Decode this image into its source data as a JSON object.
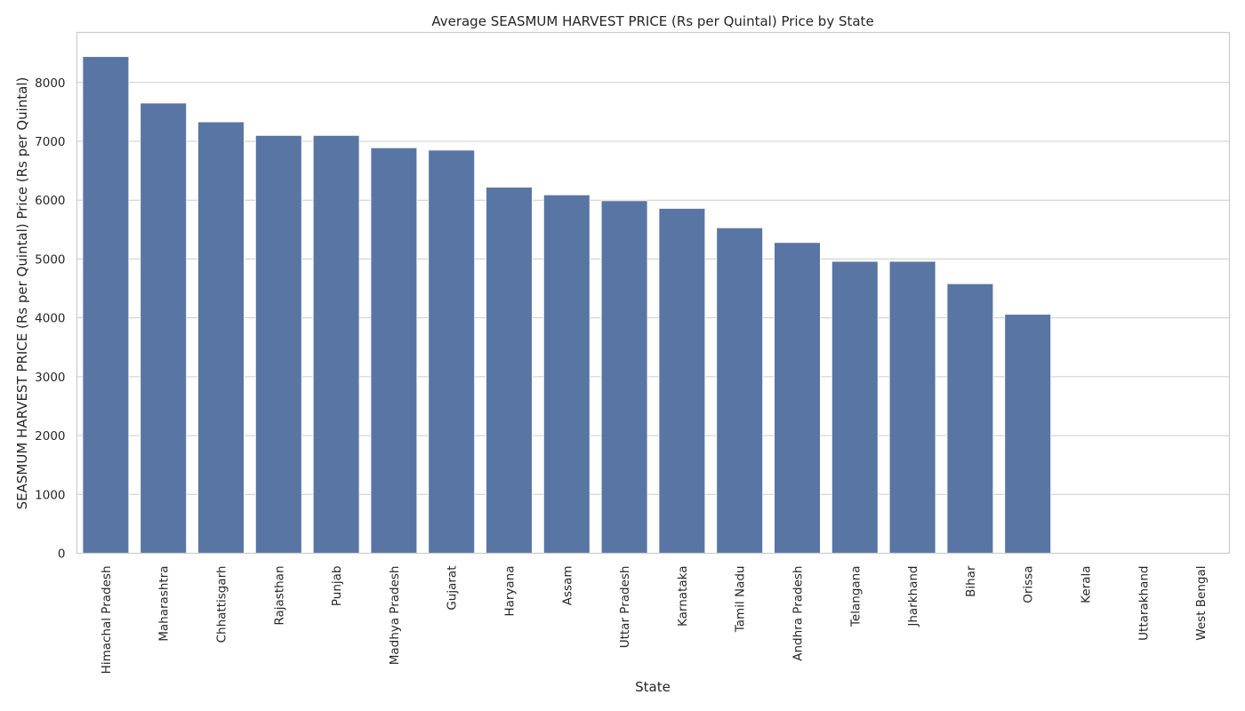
{
  "chart_data": {
    "type": "bar",
    "title": "Average SEASMUM HARVEST PRICE (Rs per Quintal) Price by State",
    "xlabel": "State",
    "ylabel": "SEASMUM HARVEST PRICE (Rs per Quintal) Price (Rs per Quintal)",
    "categories": [
      "Himachal Pradesh",
      "Maharashtra",
      "Chhattisgarh",
      "Rajasthan",
      "Punjab",
      "Madhya Pradesh",
      "Gujarat",
      "Haryana",
      "Assam",
      "Uttar Pradesh",
      "Karnataka",
      "Tamil Nadu",
      "Andhra Pradesh",
      "Telangana",
      "Jharkhand",
      "Bihar",
      "Orissa",
      "Kerala",
      "Uttarakhand",
      "West Bengal"
    ],
    "values": [
      8440,
      7650,
      7330,
      7100,
      7100,
      6890,
      6850,
      6220,
      6090,
      5990,
      5860,
      5530,
      5280,
      4960,
      4960,
      4580,
      4060,
      0,
      0,
      0
    ],
    "ylim": [
      0,
      8850
    ],
    "yticks": [
      0,
      1000,
      2000,
      3000,
      4000,
      5000,
      6000,
      7000,
      8000
    ],
    "grid": "horizontal",
    "legend": "none",
    "bar_color": "#5975a4"
  }
}
